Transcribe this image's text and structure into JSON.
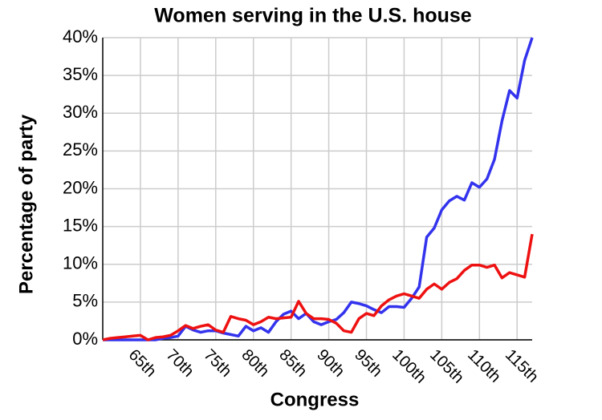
{
  "chart_data": {
    "type": "line",
    "title": "Women serving in the U.S. house",
    "x_label": "Congress",
    "y_label": "Percentage of party",
    "x": [
      60,
      61,
      62,
      63,
      64,
      65,
      66,
      67,
      68,
      69,
      70,
      71,
      72,
      73,
      74,
      75,
      76,
      77,
      78,
      79,
      80,
      81,
      82,
      83,
      84,
      85,
      86,
      87,
      88,
      89,
      90,
      91,
      92,
      93,
      94,
      95,
      96,
      97,
      98,
      99,
      100,
      101,
      102,
      103,
      104,
      105,
      106,
      107,
      108,
      109,
      110,
      111,
      112,
      113,
      114,
      115,
      116,
      117
    ],
    "series": [
      {
        "color": "#3333ee",
        "values": [
          0,
          0,
          0,
          0,
          0,
          0,
          0,
          0,
          0.2,
          0.3,
          0.5,
          1.8,
          1.3,
          1,
          1.2,
          1.2,
          0.9,
          0.7,
          0.5,
          1.8,
          1.2,
          1.6,
          1,
          2.4,
          3.4,
          3.8,
          2.8,
          3.5,
          2.4,
          2,
          2.4,
          2.7,
          3.6,
          5,
          4.8,
          4.5,
          4,
          3.6,
          4.4,
          4.4,
          4.3,
          5.5,
          7,
          13.6,
          14.8,
          17.2,
          18.4,
          19,
          18.5,
          20.8,
          20.2,
          21.3,
          23.9,
          29,
          33,
          32,
          37,
          40
        ]
      },
      {
        "color": "#ee1111",
        "values": [
          0,
          0.2,
          0.3,
          0.4,
          0.5,
          0.6,
          0,
          0.3,
          0.4,
          0.6,
          1.2,
          1.9,
          1.5,
          1.8,
          2,
          1.3,
          1,
          3.1,
          2.8,
          2.6,
          2,
          2.4,
          3,
          2.8,
          2.9,
          3,
          5.1,
          3.5,
          2.8,
          2.8,
          2.7,
          2.2,
          1.2,
          1,
          2.8,
          3.5,
          3.2,
          4.5,
          5.3,
          5.8,
          6.1,
          5.8,
          5.5,
          6.7,
          7.4,
          6.7,
          7.6,
          8.1,
          9.2,
          9.9,
          9.9,
          9.6,
          9.9,
          8.2,
          8.9,
          8.6,
          8.3,
          14
        ]
      }
    ],
    "xlim": [
      60,
      117
    ],
    "xticks": [
      {
        "value": 65,
        "label": "65th"
      },
      {
        "value": 70,
        "label": "70th"
      },
      {
        "value": 75,
        "label": "75th"
      },
      {
        "value": 80,
        "label": "80th"
      },
      {
        "value": 85,
        "label": "85th"
      },
      {
        "value": 90,
        "label": "90th"
      },
      {
        "value": 95,
        "label": "95th"
      },
      {
        "value": 100,
        "label": "100th"
      },
      {
        "value": 105,
        "label": "105th"
      },
      {
        "value": 110,
        "label": "110th"
      },
      {
        "value": 115,
        "label": "115th"
      }
    ],
    "ylim": [
      0,
      40
    ],
    "yticks": [
      {
        "value": 0,
        "label": "0%"
      },
      {
        "value": 5,
        "label": "5%"
      },
      {
        "value": 10,
        "label": "10%"
      },
      {
        "value": 15,
        "label": "15%"
      },
      {
        "value": 20,
        "label": "20%"
      },
      {
        "value": 25,
        "label": "25%"
      },
      {
        "value": 30,
        "label": "30%"
      },
      {
        "value": 35,
        "label": "35%"
      },
      {
        "value": 40,
        "label": "40%"
      }
    ],
    "grid": true
  }
}
